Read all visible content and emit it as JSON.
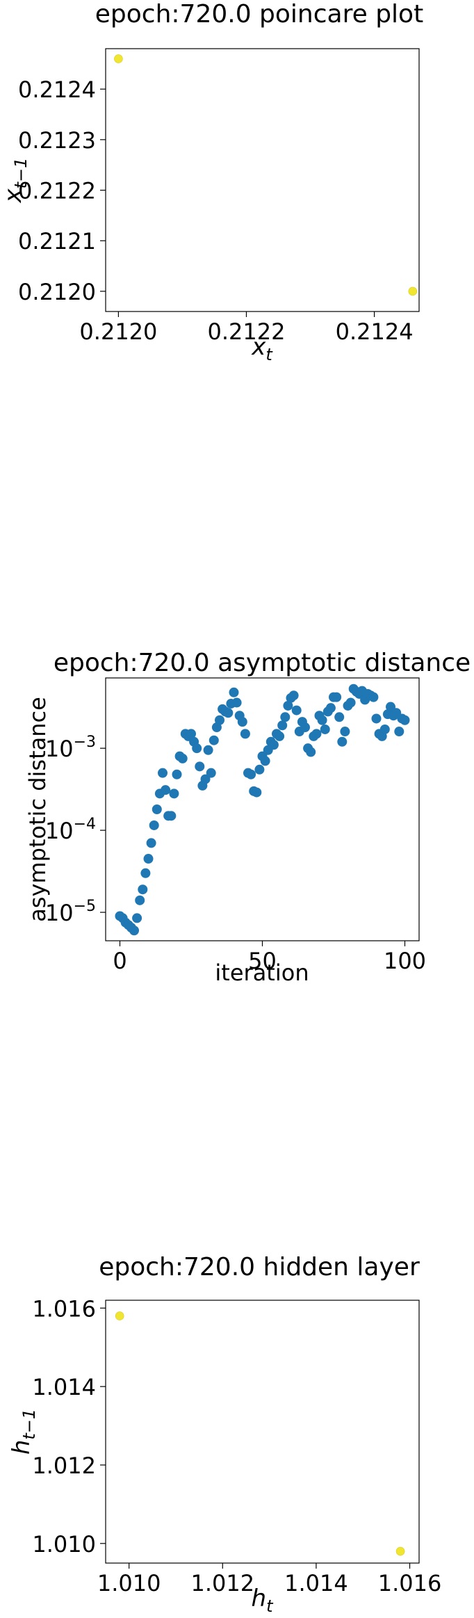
{
  "chart_data": [
    {
      "type": "scatter",
      "title": "epoch:720.0 poincare plot",
      "xlabel": "x",
      "xlabel_sub": "t",
      "ylabel": "x",
      "ylabel_sub": "t−1",
      "xlim": [
        0.21198,
        0.21247
      ],
      "ylim": [
        0.21196,
        0.21248
      ],
      "xticks": [
        0.212,
        0.2122,
        0.2124
      ],
      "xtick_labels": [
        "0.2120",
        "0.2122",
        "0.2124"
      ],
      "yticks": [
        0.212,
        0.2121,
        0.2122,
        0.2123,
        0.2124
      ],
      "ytick_labels": [
        "0.2120",
        "0.2121",
        "0.2122",
        "0.2123",
        "0.2124"
      ],
      "point_color": "#f0e530",
      "grid": false,
      "points": [
        {
          "x": 0.212,
          "y": 0.21246
        },
        {
          "x": 0.21246,
          "y": 0.212
        }
      ]
    },
    {
      "type": "scatter",
      "title": "epoch:720.0 asymptotic distance",
      "xlabel": "iteration",
      "ylabel": "asymptotic distance",
      "xlim": [
        -5,
        105
      ],
      "ylog": true,
      "ylim": [
        4.5e-06,
        0.0072
      ],
      "xticks": [
        0,
        50,
        100
      ],
      "xtick_labels": [
        "0",
        "50",
        "100"
      ],
      "yticks": [
        1e-05,
        0.0001,
        0.001
      ],
      "ytick_labels": [
        "10",
        "10",
        "10"
      ],
      "ytick_exponents": [
        "−5",
        "−4",
        "−3"
      ],
      "point_color": "#1f77b4",
      "grid": false,
      "x": [
        0,
        1,
        2,
        3,
        4,
        5,
        6,
        7,
        8,
        9,
        10,
        11,
        12,
        13,
        14,
        15,
        16,
        17,
        18,
        19,
        20,
        21,
        22,
        23,
        24,
        25,
        26,
        27,
        28,
        29,
        30,
        31,
        32,
        33,
        34,
        35,
        36,
        37,
        38,
        39,
        40,
        41,
        42,
        43,
        44,
        45,
        46,
        47,
        48,
        49,
        50,
        51,
        52,
        53,
        54,
        55,
        56,
        57,
        58,
        59,
        60,
        61,
        62,
        63,
        64,
        65,
        66,
        67,
        68,
        69,
        70,
        71,
        72,
        73,
        74,
        75,
        76,
        77,
        78,
        79,
        80,
        81,
        82,
        83,
        84,
        85,
        86,
        87,
        88,
        89,
        90,
        91,
        92,
        93,
        94,
        95,
        96,
        97,
        98,
        99,
        100
      ],
      "y": [
        9e-06,
        8.5e-06,
        7.5e-06,
        7e-06,
        6.5e-06,
        6e-06,
        8.5e-06,
        1.4e-05,
        1.9e-05,
        3e-05,
        4.5e-05,
        7e-05,
        0.000115,
        0.00018,
        0.00028,
        0.0005,
        0.00031,
        0.00015,
        0.00015,
        0.00028,
        0.00048,
        0.0008,
        0.00075,
        0.0015,
        0.0014,
        0.0015,
        0.0012,
        0.001,
        0.0006,
        0.00035,
        0.00042,
        0.00095,
        0.0005,
        0.00125,
        0.0018,
        0.0022,
        0.003,
        0.0028,
        0.0027,
        0.0035,
        0.0048,
        0.0036,
        0.0025,
        0.0021,
        0.0015,
        0.0005,
        0.00048,
        0.0003,
        0.00029,
        0.00055,
        0.0008,
        0.0007,
        0.00095,
        0.0012,
        0.0011,
        0.0015,
        0.0014,
        0.0019,
        0.0024,
        0.0033,
        0.0041,
        0.0044,
        0.0029,
        0.0016,
        0.0021,
        0.0018,
        0.001,
        0.0009,
        0.0014,
        0.0015,
        0.0025,
        0.0022,
        0.0017,
        0.0028,
        0.0031,
        0.0042,
        0.0042,
        0.0024,
        0.0012,
        0.0016,
        0.0033,
        0.0036,
        0.0053,
        0.0049,
        0.0046,
        0.005,
        0.0039,
        0.0046,
        0.0044,
        0.0042,
        0.0023,
        0.0015,
        0.0014,
        0.0017,
        0.0026,
        0.0032,
        0.0025,
        0.0027,
        0.0016,
        0.0023,
        0.0022
      ]
    },
    {
      "type": "scatter",
      "title": "epoch:720.0 hidden layer",
      "xlabel": "h",
      "xlabel_sub": "t",
      "ylabel": "h",
      "ylabel_sub": "t−1",
      "xlim": [
        1.0095,
        1.0162
      ],
      "ylim": [
        1.0095,
        1.0162
      ],
      "xticks": [
        1.01,
        1.012,
        1.014,
        1.016
      ],
      "xtick_labels": [
        "1.010",
        "1.012",
        "1.014",
        "1.016"
      ],
      "yticks": [
        1.01,
        1.012,
        1.014,
        1.016
      ],
      "ytick_labels": [
        "1.010",
        "1.012",
        "1.014",
        "1.016"
      ],
      "point_color": "#f0e530",
      "grid": false,
      "points": [
        {
          "x": 1.0098,
          "y": 1.0158
        },
        {
          "x": 1.0158,
          "y": 1.0098
        }
      ]
    }
  ]
}
